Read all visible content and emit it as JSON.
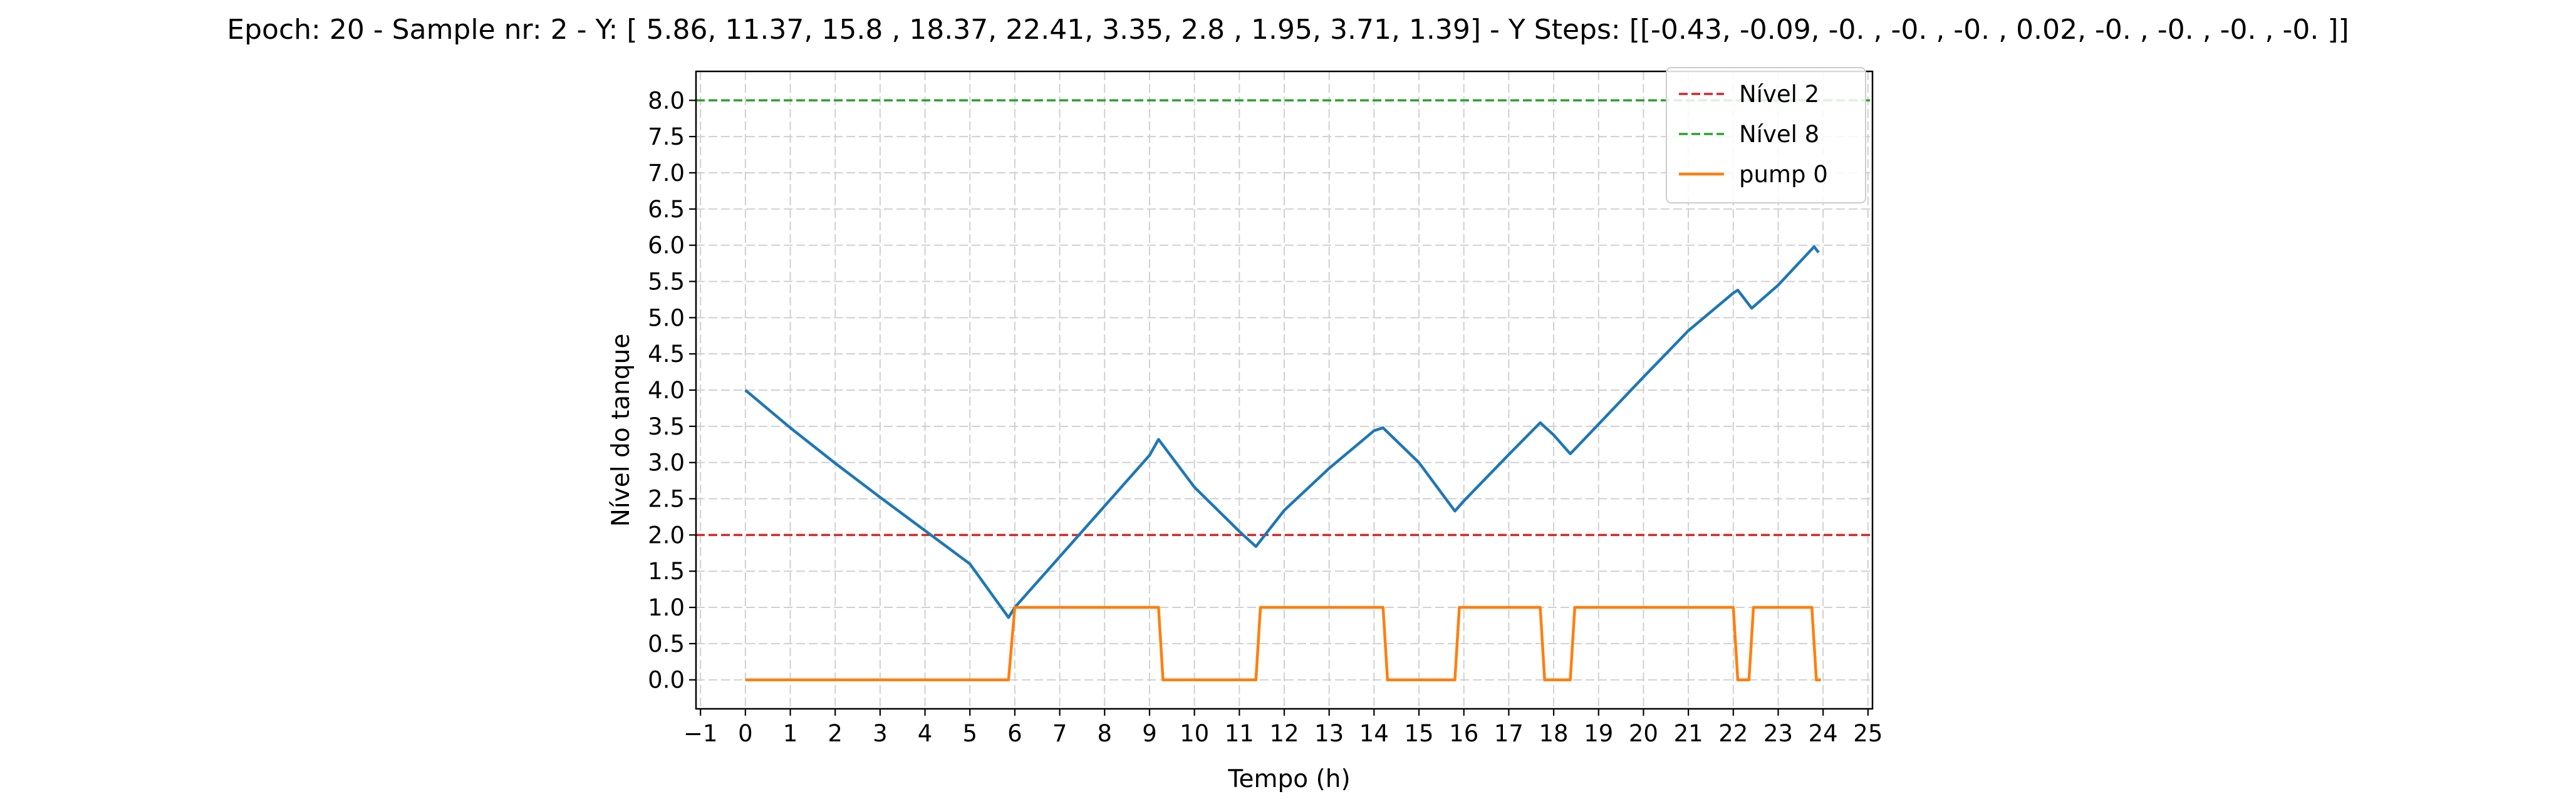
{
  "chart_data": {
    "type": "line",
    "title": "Epoch: 20 - Sample nr: 2 - Y: [ 5.86, 11.37, 15.8 , 18.37, 22.41,  3.35,  2.8 ,  1.95,  3.71,  1.39] - Y Steps: [[-0.43, -0.09, -0.  , -0.  , -0.  ,  0.02, -0.  , -0.  , -0.  , -0.  ]]",
    "xlabel": "Tempo (h)",
    "ylabel": "Nível do tanque",
    "xlim": [
      -1.1,
      25.1
    ],
    "ylim": [
      -0.4,
      8.4
    ],
    "xticks": [
      "−1",
      "0",
      "1",
      "2",
      "3",
      "4",
      "5",
      "6",
      "7",
      "8",
      "9",
      "10",
      "11",
      "12",
      "13",
      "14",
      "15",
      "16",
      "17",
      "18",
      "19",
      "20",
      "21",
      "22",
      "23",
      "24",
      "25"
    ],
    "yticks": [
      "0.0",
      "0.5",
      "1.0",
      "1.5",
      "2.0",
      "2.5",
      "3.0",
      "3.5",
      "4.0",
      "4.5",
      "5.0",
      "5.5",
      "6.0",
      "6.5",
      "7.0",
      "7.5",
      "8.0"
    ],
    "grid": true,
    "legend_position": "upper right",
    "hlines": [
      {
        "name": "Nível 2",
        "y": 2.0,
        "color": "#d62728",
        "style": "dashed"
      },
      {
        "name": "Nível 8",
        "y": 8.0,
        "color": "#2ca02c",
        "style": "dashed"
      }
    ],
    "series": [
      {
        "color": "#1f77b4",
        "x": [
          0,
          1,
          2,
          3,
          4,
          5,
          5.86,
          6,
          7,
          8,
          9,
          9.2,
          10,
          11,
          11.37,
          12,
          13,
          14,
          14.2,
          15,
          15.8,
          16,
          17,
          17.7,
          18,
          18.37,
          19,
          20,
          21,
          22,
          22.1,
          22.41,
          23,
          23.8,
          23.9
        ],
        "y": [
          4.0,
          3.48,
          2.99,
          2.52,
          2.06,
          1.6,
          0.86,
          1.0,
          1.7,
          2.4,
          3.1,
          3.32,
          2.66,
          2.05,
          1.84,
          2.34,
          2.92,
          3.44,
          3.48,
          3.0,
          2.33,
          2.47,
          3.11,
          3.55,
          3.38,
          3.12,
          3.53,
          4.18,
          4.82,
          5.34,
          5.38,
          5.13,
          5.45,
          5.98,
          5.9
        ]
      },
      {
        "name": "pump 0",
        "color": "#ff7f0e",
        "x": [
          0,
          5.86,
          6.0,
          9.2,
          9.3,
          11.37,
          11.47,
          14.2,
          14.3,
          15.8,
          15.9,
          17.7,
          17.8,
          18.37,
          18.47,
          22.0,
          22.1,
          22.35,
          22.45,
          23.75,
          23.85,
          23.95
        ],
        "y": [
          0,
          0,
          1,
          1,
          0,
          0,
          1,
          1,
          0,
          0,
          1,
          1,
          0,
          0,
          1,
          1,
          0,
          0,
          1,
          1,
          0,
          0
        ]
      }
    ]
  }
}
